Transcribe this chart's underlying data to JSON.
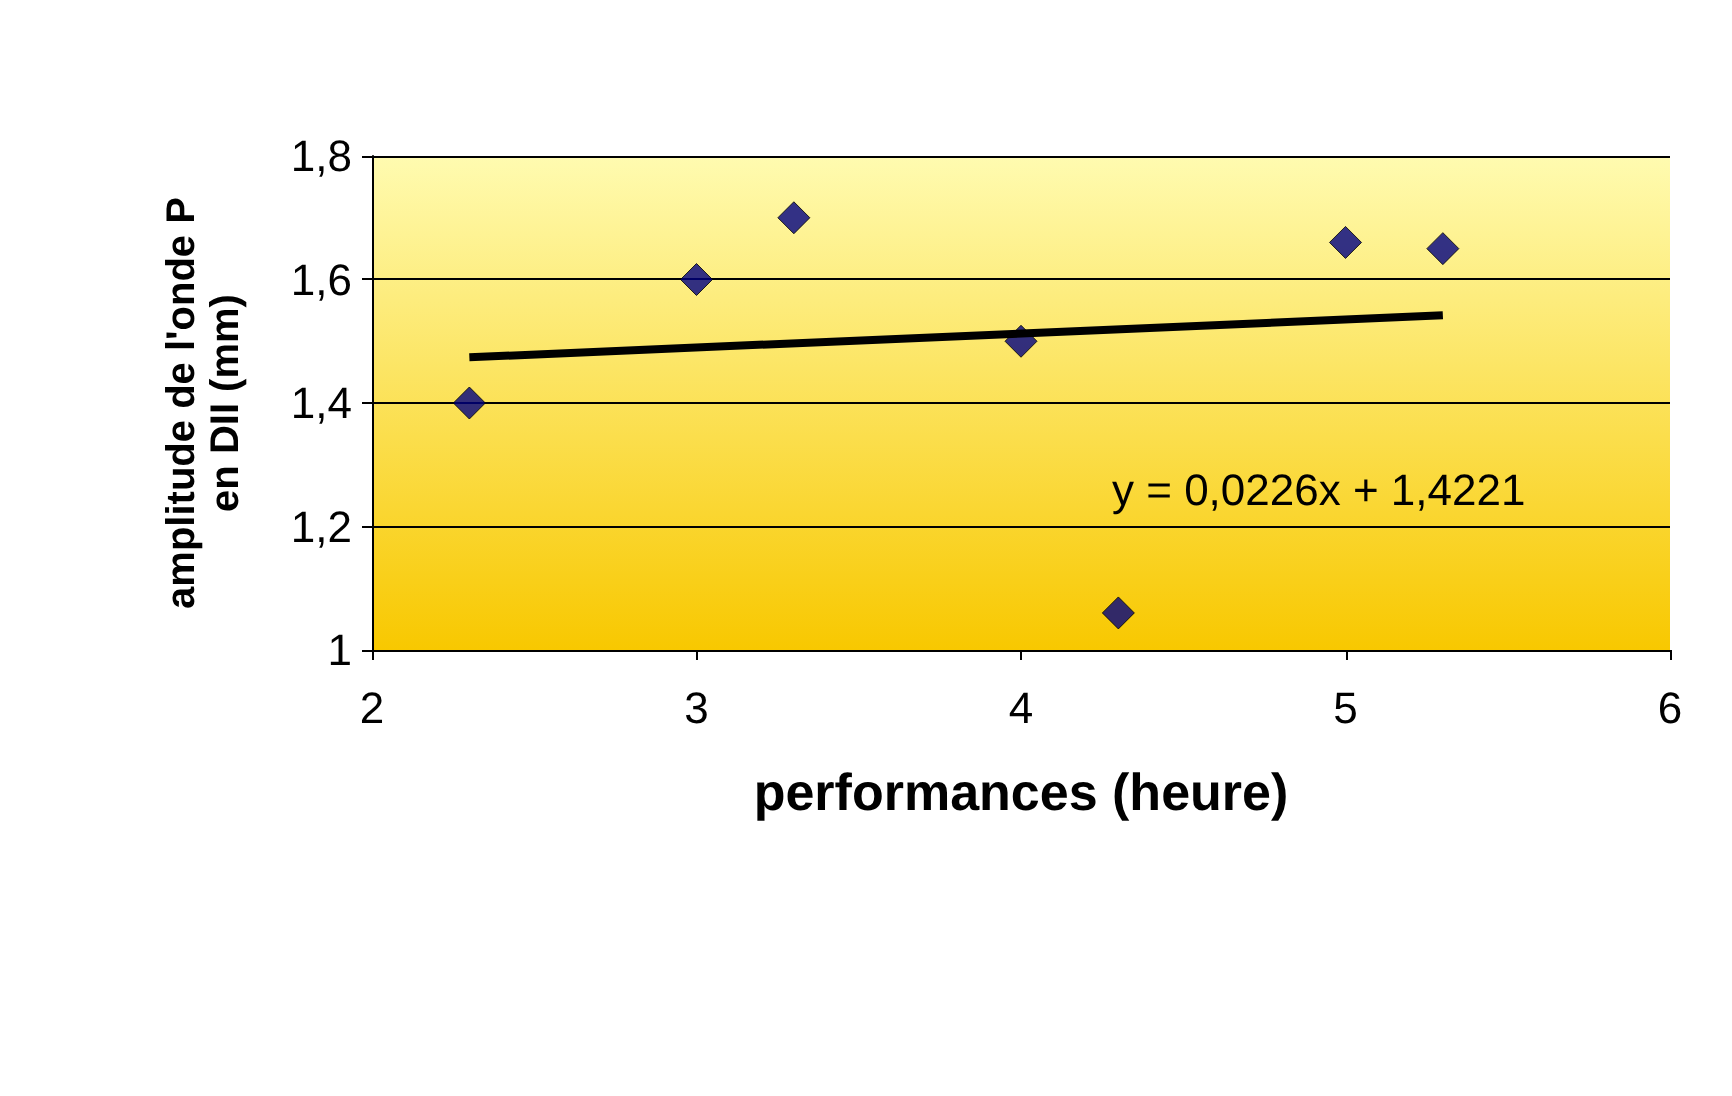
{
  "chart_data": {
    "type": "scatter",
    "xlabel": "performances (heure)",
    "ylabel": "amplitude de l'onde P\nen DII (mm)",
    "series": [
      {
        "color": "#000080",
        "marker": "diamond",
        "x": [
          2.3,
          3,
          3.3,
          4,
          4.3,
          5,
          5.3
        ],
        "values": [
          1.4,
          1.6,
          1.7,
          1.5,
          1.06,
          1.66,
          1.65
        ]
      },
      {
        "type": "line",
        "marker": "none",
        "color": "#000000",
        "x": [
          2.3,
          5.3
        ],
        "values": [
          1.474,
          1.542
        ]
      }
    ],
    "xlim": [
      2,
      6
    ],
    "xticks": [
      2,
      3,
      4,
      5,
      6
    ],
    "ylim": [
      1,
      1.8
    ],
    "yticks": [
      1,
      {
        "value": 1.2,
        "label": "1,2"
      },
      {
        "value": 1.4,
        "label": "1,4"
      },
      {
        "value": 1.6,
        "label": "1,6"
      },
      {
        "value": 1.8,
        "label": "1,8"
      }
    ],
    "grid": "y",
    "annotations": [
      "y = 0,0226x + 1,4221"
    ]
  }
}
